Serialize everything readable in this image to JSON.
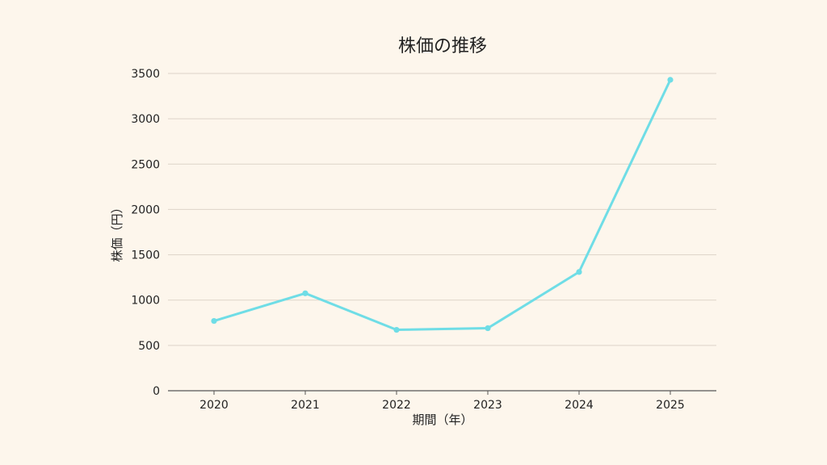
{
  "chart_data": {
    "type": "line",
    "title": "株価の推移",
    "xlabel": "期間（年）",
    "ylabel": "株価（円）",
    "categories": [
      "2020",
      "2021",
      "2022",
      "2023",
      "2024",
      "2025"
    ],
    "series": [
      {
        "values": [
          770,
          1075,
          672,
          690,
          1310,
          3430
        ]
      }
    ],
    "ylim": [
      0,
      3500
    ],
    "yticks": [
      0,
      500,
      1000,
      1500,
      2000,
      2500,
      3000,
      3500
    ],
    "grid": true,
    "line_color": "#6fdde6",
    "grid_color": "#ddd3c8",
    "axis_color": "#555555"
  }
}
